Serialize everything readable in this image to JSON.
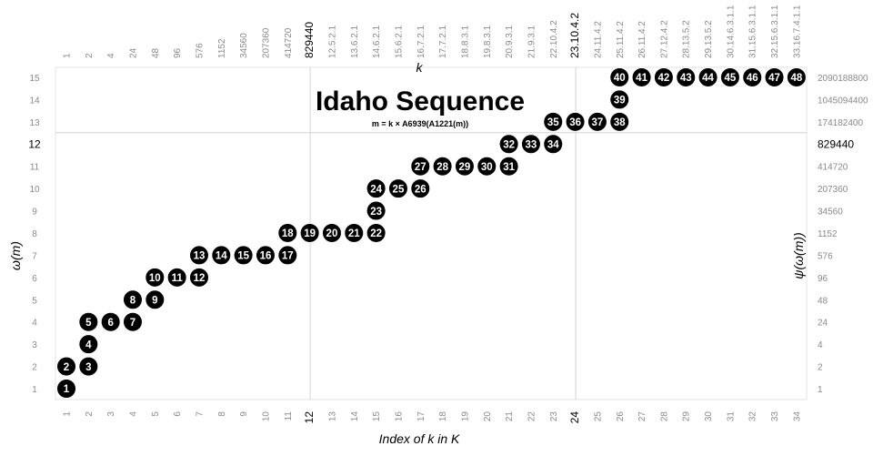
{
  "chart_data": {
    "type": "scatter",
    "title": "Idaho Sequence",
    "subtitle": "m = k × A6939(A1221(m))",
    "xlabel": "Index of k in K",
    "x2label": "k",
    "ylabel": "ω(m)",
    "y2label": "ψ(ω(m))",
    "xlim": [
      1,
      34
    ],
    "ylim": [
      1,
      15
    ],
    "grid": "emphasized lines only (x = 12, x = 24, y = 12)",
    "x_ticks": [
      "1",
      "2",
      "3",
      "4",
      "5",
      "6",
      "7",
      "8",
      "9",
      "10",
      "11",
      "12",
      "13",
      "14",
      "15",
      "16",
      "17",
      "18",
      "19",
      "20",
      "21",
      "22",
      "23",
      "24",
      "25",
      "26",
      "27",
      "28",
      "29",
      "30",
      "31",
      "32",
      "33",
      "34"
    ],
    "x_emphasized": [
      "12",
      "24"
    ],
    "k_values": [
      "1",
      "2",
      "4",
      "24",
      "48",
      "96",
      "576",
      "1152",
      "34560",
      "207360",
      "414720",
      "829440",
      "12.5.2.1",
      "13.6.2.1",
      "14.6.2.1",
      "15.6.2.1",
      "16.7.2.1",
      "17.7.2.1",
      "18.8.3.1",
      "19.8.3.1",
      "20.9.3.1",
      "21.9.3.1",
      "22.10.4.2",
      "23.10.4.2",
      "24.11.4.2",
      "25.11.4.2",
      "26.11.4.2",
      "27.12.4.2",
      "28.13.5.2",
      "29.13.5.2",
      "30.14.6.3.1.1",
      "31.15.6.3.1.1",
      "32.15.6.3.1.1",
      "33.16.7.4.1.1"
    ],
    "k_emphasized": [
      "829440",
      "23.10.4.2"
    ],
    "y_ticks": [
      "1",
      "2",
      "3",
      "4",
      "5",
      "6",
      "7",
      "8",
      "9",
      "10",
      "11",
      "12",
      "13",
      "14",
      "15"
    ],
    "y_emphasized": [
      "12"
    ],
    "psi_values": [
      "1",
      "2",
      "4",
      "24",
      "48",
      "96",
      "576",
      "1152",
      "34560",
      "207360",
      "414720",
      "829440",
      "174182400",
      "1045094400",
      "2090188800"
    ],
    "psi_emphasized": [
      "829440"
    ],
    "points": [
      {
        "label": "1",
        "x": 1,
        "y": 1
      },
      {
        "label": "2",
        "x": 1,
        "y": 2
      },
      {
        "label": "3",
        "x": 2,
        "y": 2
      },
      {
        "label": "4",
        "x": 2,
        "y": 3
      },
      {
        "label": "5",
        "x": 2,
        "y": 4
      },
      {
        "label": "6",
        "x": 3,
        "y": 4
      },
      {
        "label": "7",
        "x": 4,
        "y": 4
      },
      {
        "label": "8",
        "x": 4,
        "y": 5
      },
      {
        "label": "9",
        "x": 5,
        "y": 5
      },
      {
        "label": "10",
        "x": 5,
        "y": 6
      },
      {
        "label": "11",
        "x": 6,
        "y": 6
      },
      {
        "label": "12",
        "x": 7,
        "y": 6
      },
      {
        "label": "13",
        "x": 7,
        "y": 7
      },
      {
        "label": "14",
        "x": 8,
        "y": 7
      },
      {
        "label": "15",
        "x": 9,
        "y": 7
      },
      {
        "label": "16",
        "x": 10,
        "y": 7
      },
      {
        "label": "17",
        "x": 11,
        "y": 7
      },
      {
        "label": "18",
        "x": 11,
        "y": 8
      },
      {
        "label": "19",
        "x": 12,
        "y": 8
      },
      {
        "label": "20",
        "x": 13,
        "y": 8
      },
      {
        "label": "21",
        "x": 14,
        "y": 8
      },
      {
        "label": "22",
        "x": 15,
        "y": 8
      },
      {
        "label": "23",
        "x": 15,
        "y": 9
      },
      {
        "label": "24",
        "x": 15,
        "y": 10
      },
      {
        "label": "25",
        "x": 16,
        "y": 10
      },
      {
        "label": "26",
        "x": 17,
        "y": 10
      },
      {
        "label": "27",
        "x": 17,
        "y": 11
      },
      {
        "label": "28",
        "x": 18,
        "y": 11
      },
      {
        "label": "29",
        "x": 19,
        "y": 11
      },
      {
        "label": "30",
        "x": 20,
        "y": 11
      },
      {
        "label": "31",
        "x": 21,
        "y": 11
      },
      {
        "label": "32",
        "x": 21,
        "y": 12
      },
      {
        "label": "33",
        "x": 22,
        "y": 12
      },
      {
        "label": "34",
        "x": 23,
        "y": 12
      },
      {
        "label": "35",
        "x": 23,
        "y": 13
      },
      {
        "label": "36",
        "x": 24,
        "y": 13
      },
      {
        "label": "37",
        "x": 25,
        "y": 13
      },
      {
        "label": "38",
        "x": 26,
        "y": 13
      },
      {
        "label": "39",
        "x": 26,
        "y": 14
      },
      {
        "label": "40",
        "x": 26,
        "y": 15
      },
      {
        "label": "41",
        "x": 27,
        "y": 15
      },
      {
        "label": "42",
        "x": 28,
        "y": 15
      },
      {
        "label": "43",
        "x": 29,
        "y": 15
      },
      {
        "label": "44",
        "x": 30,
        "y": 15
      },
      {
        "label": "45",
        "x": 31,
        "y": 15
      },
      {
        "label": "46",
        "x": 32,
        "y": 15
      },
      {
        "label": "47",
        "x": 33,
        "y": 15
      },
      {
        "label": "48",
        "x": 34,
        "y": 15
      }
    ],
    "colors": {
      "point_fill": "#000000",
      "point_stroke": "#ffffff",
      "point_text": "#ffffff",
      "tick_text": "#8a8a8a",
      "emphasis_text": "#000000",
      "frame": "#e3e3e3",
      "emphasis_line": "#d3d3d3"
    }
  }
}
